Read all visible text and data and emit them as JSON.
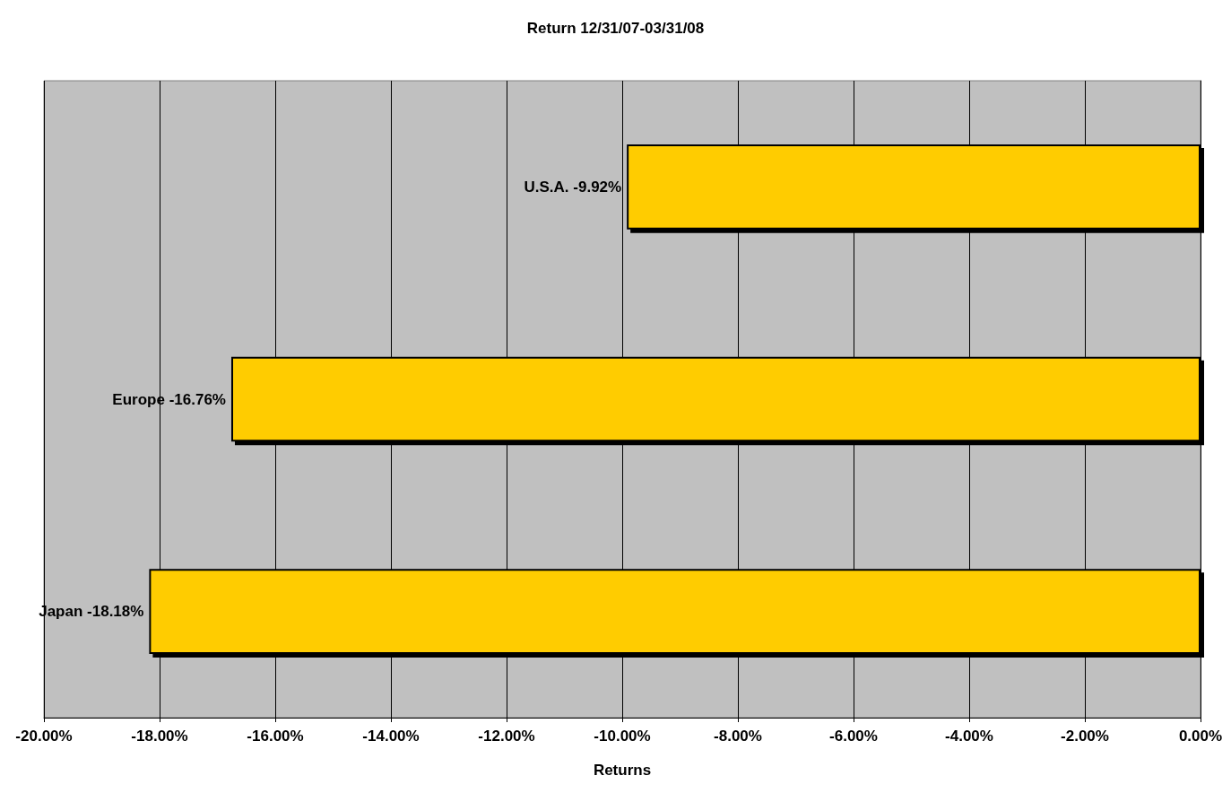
{
  "chart_data": {
    "type": "bar",
    "orientation": "horizontal",
    "title": "Return 12/31/07-03/31/08",
    "xlabel": "Returns",
    "categories": [
      "U.S.A.",
      "Europe",
      "Japan"
    ],
    "values": [
      -9.92,
      -16.76,
      -18.18
    ],
    "value_labels": [
      "-9.92%",
      "-16.76%",
      "-18.18%"
    ],
    "color": "#ffcc00",
    "xlim": [
      -20,
      0
    ],
    "xticks": [
      {
        "value": -20,
        "label": "-20.00%"
      },
      {
        "value": -18,
        "label": "-18.00%"
      },
      {
        "value": -16,
        "label": "-16.00%"
      },
      {
        "value": -14,
        "label": "-14.00%"
      },
      {
        "value": -12,
        "label": "-12.00%"
      },
      {
        "value": -10,
        "label": "-10.00%"
      },
      {
        "value": -8,
        "label": "-8.00%"
      },
      {
        "value": -6,
        "label": "-6.00%"
      },
      {
        "value": -4,
        "label": "-4.00%"
      },
      {
        "value": -2,
        "label": "-2.00%"
      },
      {
        "value": 0,
        "label": "0.00%"
      }
    ],
    "grid": "x",
    "tick_labels": "x"
  }
}
